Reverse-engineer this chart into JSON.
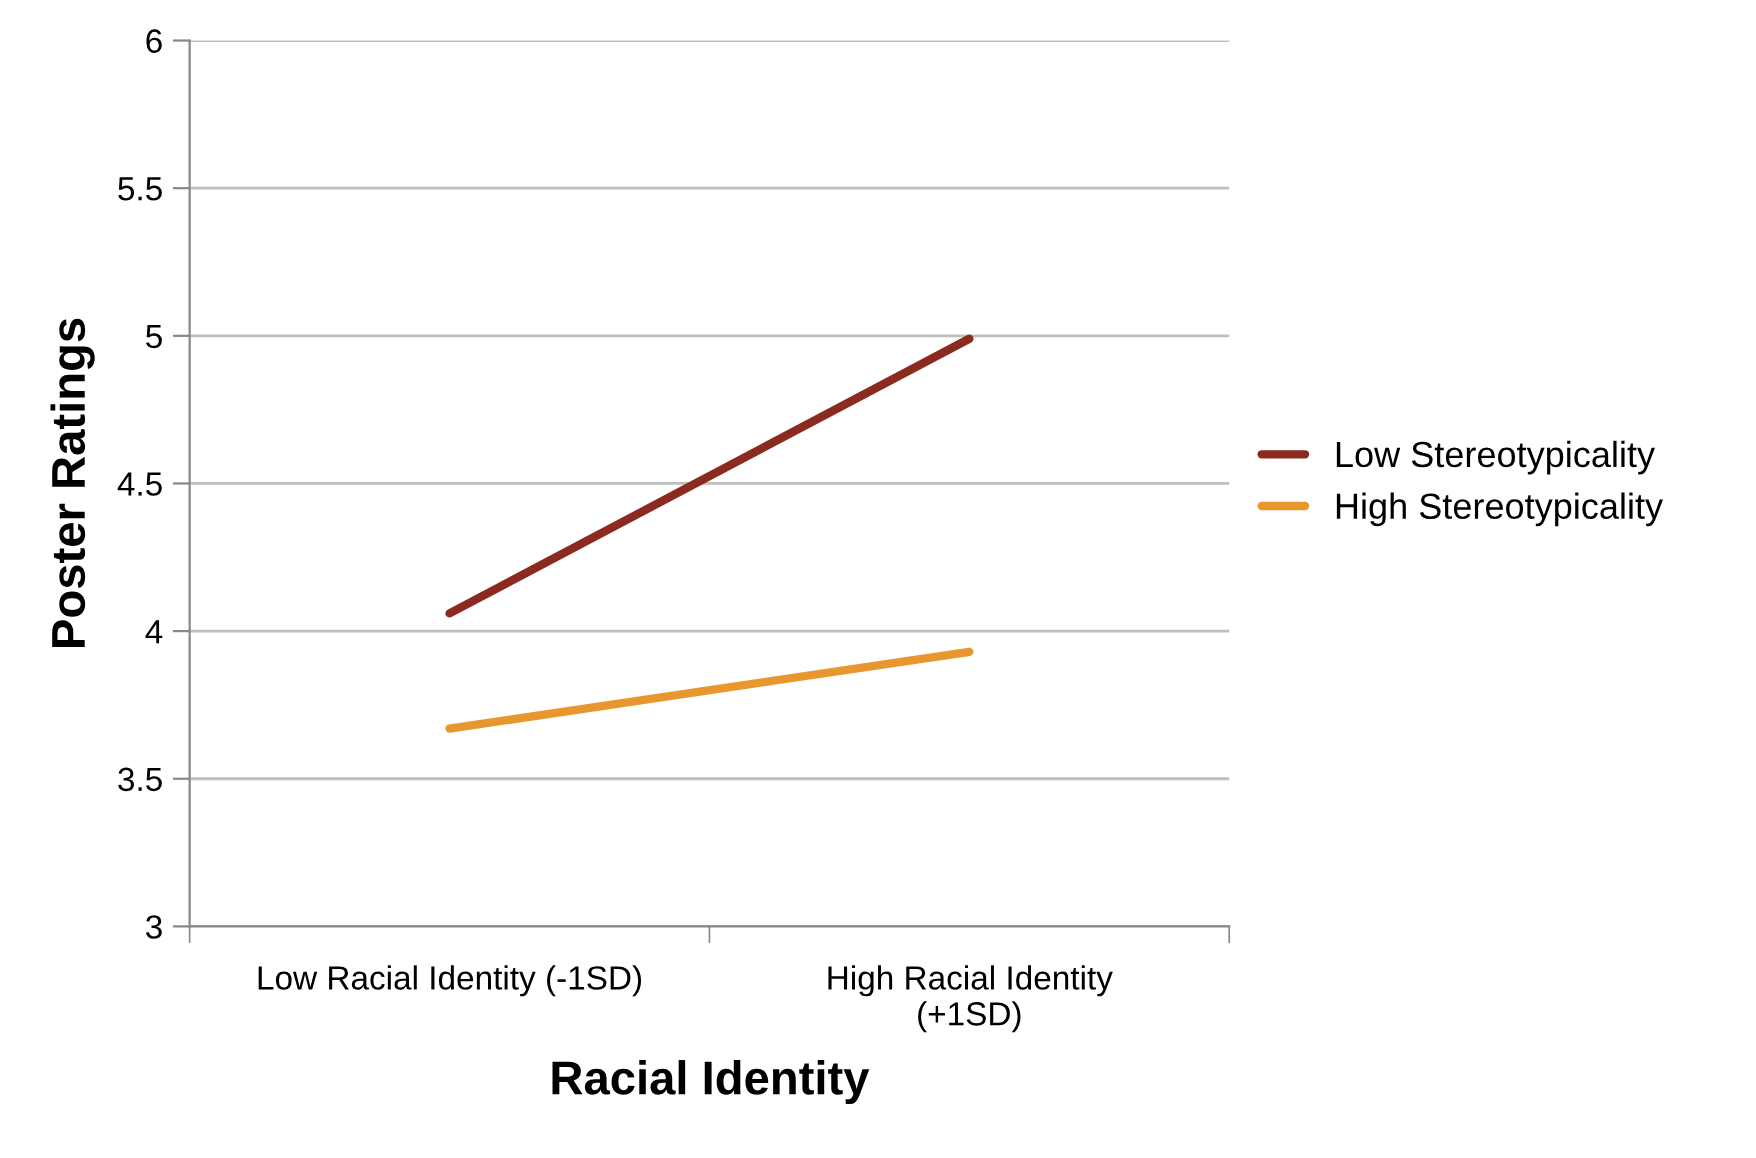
{
  "chart_data": {
    "type": "line",
    "xlabel": "Racial Identity",
    "ylabel": "Poster Ratings",
    "categories": [
      "Low Racial Identity (-1SD)",
      "High Racial Identity\n(+1SD)"
    ],
    "series": [
      {
        "name": "Low Stereotypicality",
        "color": "#8b2a1e",
        "values": [
          4.06,
          4.99
        ]
      },
      {
        "name": "High Stereotypicality",
        "color": "#e8962e",
        "values": [
          3.67,
          3.93
        ]
      }
    ],
    "ylim": [
      3,
      6
    ],
    "yticks": [
      3,
      3.5,
      4,
      4.5,
      5,
      5.5,
      6
    ],
    "grid": "y",
    "legend": "right",
    "marker": "none",
    "line_style": "solid"
  }
}
